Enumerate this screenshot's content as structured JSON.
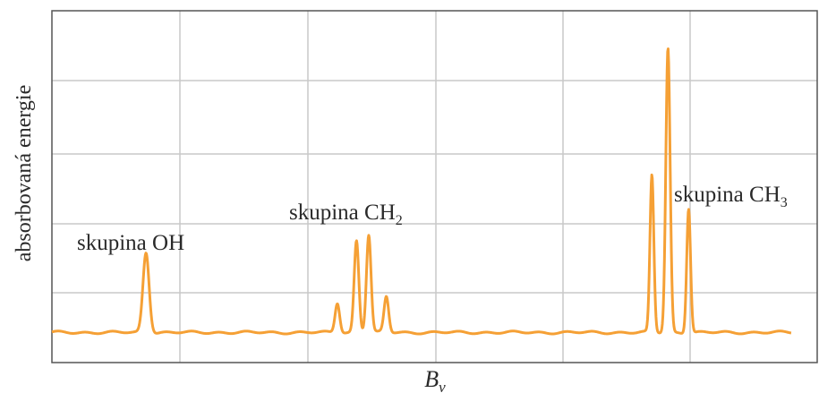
{
  "chart_data": {
    "type": "line",
    "xlabel": "B",
    "xlabel_sub": "v",
    "ylabel": "absorbovaná energie",
    "grid": true,
    "line_color": "#f5a035",
    "grid_color": "#c9c9c9",
    "axis_color": "#555555",
    "annotations": [
      {
        "id": "oh",
        "text": "skupina OH",
        "sub": ""
      },
      {
        "id": "ch2",
        "text": "skupina CH",
        "sub": "2"
      },
      {
        "id": "ch3",
        "text": "skupina CH",
        "sub": "3"
      }
    ],
    "baseline": 0.02,
    "peaks": [
      {
        "x": 0.123,
        "height": 0.27,
        "width": 0.004
      },
      {
        "x": 0.373,
        "height": 0.1,
        "width": 0.003
      },
      {
        "x": 0.398,
        "height": 0.31,
        "width": 0.003
      },
      {
        "x": 0.414,
        "height": 0.33,
        "width": 0.003
      },
      {
        "x": 0.437,
        "height": 0.12,
        "width": 0.003
      },
      {
        "x": 0.784,
        "height": 0.53,
        "width": 0.0025
      },
      {
        "x": 0.805,
        "height": 0.96,
        "width": 0.0028
      },
      {
        "x": 0.832,
        "height": 0.42,
        "width": 0.0025
      }
    ]
  }
}
